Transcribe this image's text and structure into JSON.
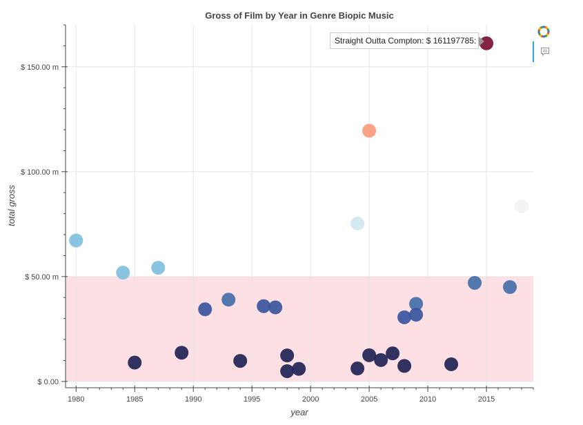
{
  "chart_data": {
    "type": "scatter",
    "title": "Gross of Film by Year in Genre Biopic Music",
    "xlabel": "year",
    "ylabel": "total gross",
    "xlim": [
      1979.1,
      2019.0
    ],
    "ylim": [
      -3000000,
      170000000
    ],
    "x_ticks": [
      1980,
      1985,
      1990,
      1995,
      2000,
      2005,
      2010,
      2015
    ],
    "y_ticks": [
      {
        "value": 0,
        "label": "$ 0.00"
      },
      {
        "value": 50000000,
        "label": "$ 50.00 m"
      },
      {
        "value": 100000000,
        "label": "$ 100.00 m"
      },
      {
        "value": 150000000,
        "label": "$ 150.00 m"
      }
    ],
    "grid": true,
    "band": {
      "y0": 0,
      "y1": 50000000,
      "color": "#fde0e3"
    },
    "points": [
      {
        "x": 1980,
        "y": 67200000,
        "color": "#7fbfdd"
      },
      {
        "x": 1984,
        "y": 51900000,
        "color": "#7fbfdd"
      },
      {
        "x": 1985,
        "y": 9000000,
        "color": "#1f2354"
      },
      {
        "x": 1987,
        "y": 54200000,
        "color": "#7fbfdd"
      },
      {
        "x": 1989,
        "y": 13700000,
        "color": "#1f2354"
      },
      {
        "x": 1991,
        "y": 34400000,
        "color": "#3a55a0"
      },
      {
        "x": 1993,
        "y": 39000000,
        "color": "#446fa8"
      },
      {
        "x": 1994,
        "y": 9800000,
        "color": "#1f2354"
      },
      {
        "x": 1996,
        "y": 35900000,
        "color": "#3a55a0"
      },
      {
        "x": 1997,
        "y": 35300000,
        "color": "#3a55a0"
      },
      {
        "x": 1998,
        "y": 12400000,
        "color": "#1f2354"
      },
      {
        "x": 1998,
        "y": 4900000,
        "color": "#1f2354"
      },
      {
        "x": 1999,
        "y": 6000000,
        "color": "#1f2354"
      },
      {
        "x": 2004,
        "y": 75300000,
        "color": "#d0e6f1"
      },
      {
        "x": 2004,
        "y": 6200000,
        "color": "#1f2354"
      },
      {
        "x": 2005,
        "y": 119500000,
        "color": "#fc9a7c"
      },
      {
        "x": 2005,
        "y": 12500000,
        "color": "#1f2354"
      },
      {
        "x": 2006,
        "y": 10200000,
        "color": "#1f2354"
      },
      {
        "x": 2007,
        "y": 13400000,
        "color": "#1f2354"
      },
      {
        "x": 2008,
        "y": 30600000,
        "color": "#3a55a0"
      },
      {
        "x": 2008,
        "y": 7400000,
        "color": "#1f2354"
      },
      {
        "x": 2009,
        "y": 37000000,
        "color": "#446fa8"
      },
      {
        "x": 2009,
        "y": 31800000,
        "color": "#3a55a0"
      },
      {
        "x": 2012,
        "y": 8200000,
        "color": "#1f2354"
      },
      {
        "x": 2014,
        "y": 47000000,
        "color": "#446fa8"
      },
      {
        "x": 2015,
        "y": 161197785,
        "color": "#7b0f37"
      },
      {
        "x": 2017,
        "y": 45000000,
        "color": "#446fa8"
      },
      {
        "x": 2018,
        "y": 83500000,
        "color": "#f2f2f2"
      }
    ]
  },
  "tooltip": {
    "text": "Straight Outta Compton: $ 161197785:"
  },
  "toolbar": {
    "logo_icon": "bokeh-logo-icon",
    "hover_icon": "hover-tool-icon"
  },
  "colors": {
    "grid": "#e5e5e5",
    "axis": "#444444",
    "band": "#fde0e3",
    "accent": "#26aae1"
  }
}
